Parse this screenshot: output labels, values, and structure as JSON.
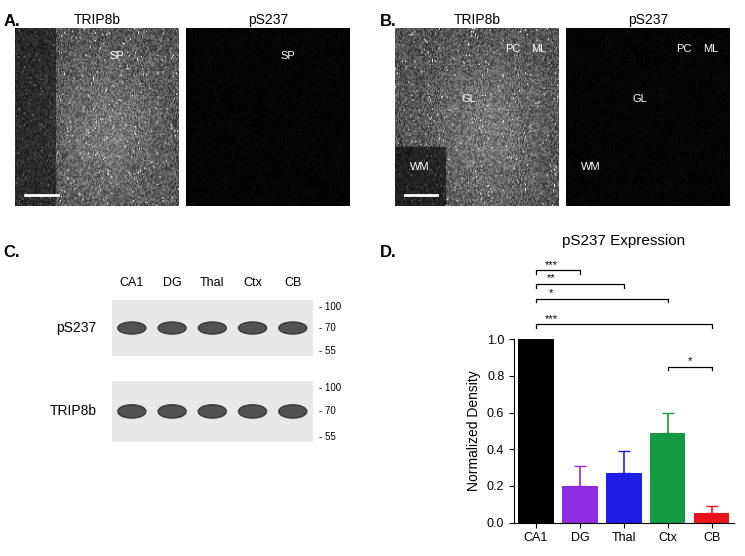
{
  "panels": [
    {
      "label": "A.",
      "images": [
        {
          "title": "TRIP8b",
          "annotations": [
            "SP"
          ]
        },
        {
          "title": "pS237",
          "annotations": [
            "SP"
          ]
        }
      ]
    },
    {
      "label": "B.",
      "images": [
        {
          "title": "TRIP8b",
          "annotations": [
            "PC",
            "ML",
            "GL",
            "WM"
          ]
        },
        {
          "title": "pS237",
          "annotations": [
            "PC",
            "ML",
            "GL",
            "WM"
          ]
        }
      ]
    },
    {
      "label": "C.",
      "blot": {
        "lanes": [
          "CA1",
          "DG",
          "Thal",
          "Ctx",
          "CB"
        ],
        "rows": [
          "pS237",
          "TRIP8b"
        ],
        "markers": [
          100,
          70,
          55
        ]
      }
    }
  ],
  "chart_data": {
    "panel": "D.",
    "type": "bar",
    "title": "pS237 Expression",
    "y_label": "Normalized Density",
    "categories": [
      "CA1",
      "DG",
      "Thal",
      "Ctx",
      "CB"
    ],
    "values": [
      1.0,
      0.2,
      0.27,
      0.49,
      0.05
    ],
    "errors": [
      null,
      0.11,
      0.12,
      0.11,
      0.04
    ],
    "colors": [
      "#000000",
      "#8e2de0",
      "#1e1ee6",
      "#139a43",
      "#e8161c"
    ],
    "ylim": [
      0,
      1.0
    ],
    "yticks": [
      {
        "value": 0,
        "label": "0.0"
      },
      {
        "value": 0.2,
        "label": "0.2"
      },
      {
        "value": 0.4,
        "label": "0.4"
      },
      {
        "value": 0.6,
        "label": "0.6"
      },
      {
        "value": 0.8,
        "label": "0.8"
      },
      {
        "value": 1.0,
        "label": "1.0"
      }
    ],
    "annotations": [
      {
        "from": "CA1",
        "to": "DG",
        "label": "***"
      },
      {
        "from": "CA1",
        "to": "Thal",
        "label": "**"
      },
      {
        "from": "CA1",
        "to": "Ctx",
        "label": "*"
      },
      {
        "from": "CA1",
        "to": "CB",
        "label": "***"
      },
      {
        "from": "Ctx",
        "to": "CB",
        "label": "*"
      }
    ]
  }
}
